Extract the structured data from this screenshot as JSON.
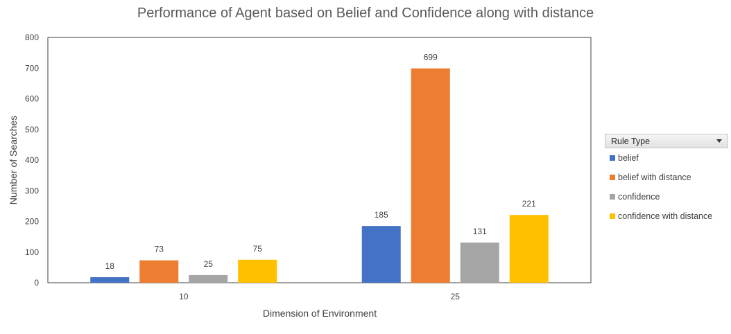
{
  "chart_data": {
    "type": "bar",
    "title": "Performance of Agent based on Belief and Confidence along with distance",
    "xlabel": "Dimension of Environment",
    "ylabel": "Number of Searches",
    "categories": [
      "10",
      "25"
    ],
    "ylim": [
      0,
      800
    ],
    "yticks": [
      0,
      100,
      200,
      300,
      400,
      500,
      600,
      700,
      800
    ],
    "grid": false,
    "legend_position": "right",
    "legend_title": "Rule Type",
    "series": [
      {
        "name": "belief",
        "values": [
          18,
          185
        ],
        "color": "#4472C4"
      },
      {
        "name": "belief with distance",
        "values": [
          73,
          699
        ],
        "color": "#ED7D31"
      },
      {
        "name": "confidence",
        "values": [
          25,
          131
        ],
        "color": "#A5A5A5"
      },
      {
        "name": "confidence with distance",
        "values": [
          75,
          221
        ],
        "color": "#FFC000"
      }
    ]
  }
}
